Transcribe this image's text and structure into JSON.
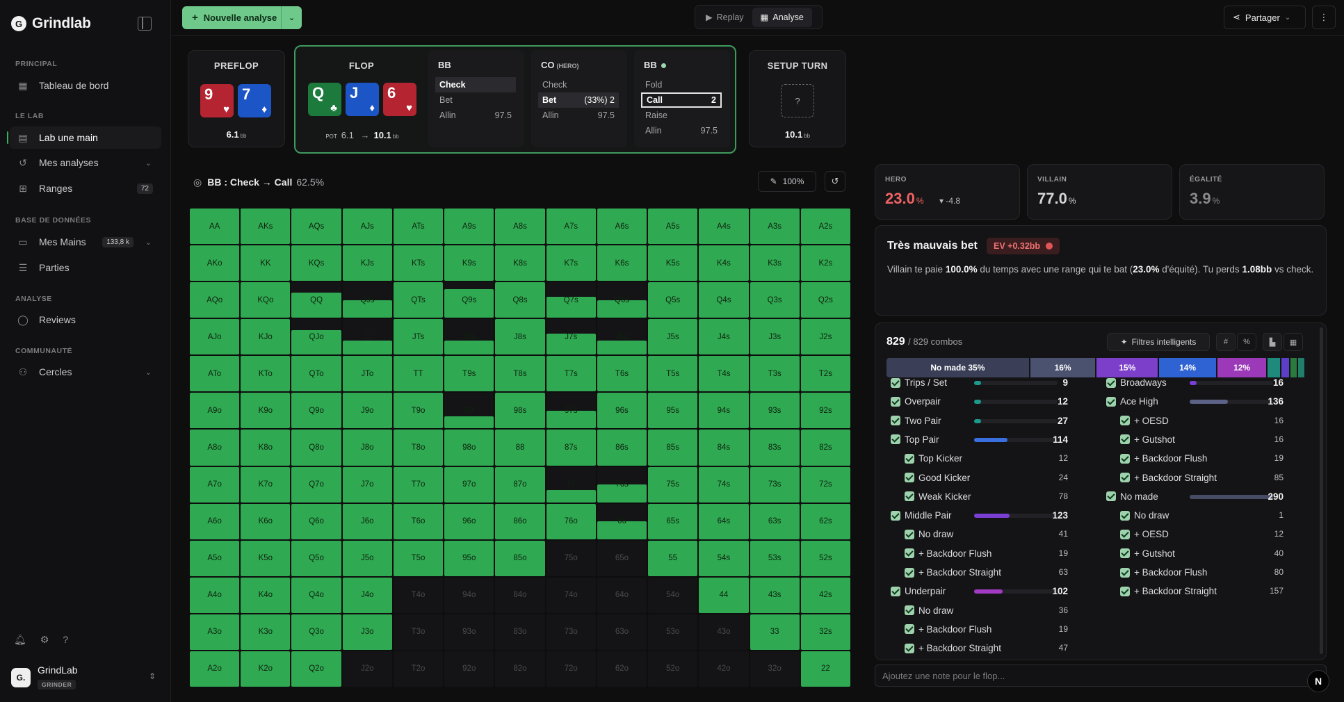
{
  "brand": {
    "name": "Grindlab"
  },
  "sidebar": {
    "sections": [
      "PRINCIPAL",
      "LE LAB",
      "BASE DE DONNÉES",
      "ANALYSE",
      "COMMUNAUTÉ"
    ],
    "items": [
      {
        "label": "Tableau de bord",
        "icon": "dashboard-icon"
      },
      {
        "label": "Lab une main",
        "icon": "calculator-icon"
      },
      {
        "label": "Mes analyses",
        "icon": "history-icon"
      },
      {
        "label": "Ranges",
        "icon": "grid-icon",
        "badge": "72"
      },
      {
        "label": "Mes Mains",
        "icon": "hands-icon",
        "badge": "133,8 k"
      },
      {
        "label": "Parties",
        "icon": "table-icon"
      },
      {
        "label": "Reviews",
        "icon": "chat-icon"
      },
      {
        "label": "Cercles",
        "icon": "users-icon"
      }
    ],
    "user": {
      "name": "GrindLab",
      "tag": "GRINDER",
      "avatar": "G."
    }
  },
  "topbar": {
    "new_label": "Nouvelle analyse",
    "replay": "Replay",
    "analyse": "Analyse",
    "share": "Partager"
  },
  "preflop": {
    "title": "PREFLOP",
    "cards": [
      {
        "rank": "9",
        "suit": "♥"
      },
      {
        "rank": "7",
        "suit": "♦"
      }
    ],
    "pot": "6.1",
    "unit": "bb"
  },
  "flop": {
    "title": "FLOP",
    "cards": [
      {
        "rank": "Q",
        "suit": "♣"
      },
      {
        "rank": "J",
        "suit": "♦"
      },
      {
        "rank": "6",
        "suit": "♥"
      }
    ],
    "pot_label": "POT",
    "pot_from": "6.1",
    "arrow": "→",
    "pot_to": "10.1",
    "unit": "bb"
  },
  "actions": [
    {
      "player": "BB",
      "tag": "",
      "rows": [
        {
          "a": "Check",
          "v": ""
        },
        {
          "a": "Bet",
          "v": ""
        },
        {
          "a": "Allin",
          "v": "97.5"
        }
      ]
    },
    {
      "player": "CO",
      "tag": "(HERO)",
      "rows": [
        {
          "a": "Check",
          "v": ""
        },
        {
          "a": "Bet",
          "v": "(33%) 2"
        },
        {
          "a": "Allin",
          "v": "97.5"
        }
      ]
    },
    {
      "player": "BB",
      "tag": "",
      "rows": [
        {
          "a": "Fold",
          "v": ""
        },
        {
          "a": "Call",
          "v": "2"
        },
        {
          "a": "Raise",
          "v": ""
        },
        {
          "a": "Allin",
          "v": "97.5"
        }
      ]
    }
  ],
  "setup_turn": {
    "title": "SETUP TURN",
    "placeholder": "?",
    "pot": "10.1",
    "unit": "bb"
  },
  "range_header": {
    "title": "BB : Check → Call",
    "pct": "62.5%",
    "zoom": "100%"
  },
  "hands": [
    [
      "AA",
      "AKs",
      "AQs",
      "AJs",
      "ATs",
      "A9s",
      "A8s",
      "A7s",
      "A6s",
      "A5s",
      "A4s",
      "A3s",
      "A2s"
    ],
    [
      "AKo",
      "KK",
      "KQs",
      "KJs",
      "KTs",
      "K9s",
      "K8s",
      "K7s",
      "K6s",
      "K5s",
      "K4s",
      "K3s",
      "K2s"
    ],
    [
      "AQo",
      "KQo",
      "QQ",
      "QJs",
      "QTs",
      "Q9s",
      "Q8s",
      "Q7s",
      "Q6s",
      "Q5s",
      "Q4s",
      "Q3s",
      "Q2s"
    ],
    [
      "AJo",
      "KJo",
      "QJo",
      "JJ",
      "JTs",
      "J9s",
      "J8s",
      "J7s",
      "J6s",
      "J5s",
      "J4s",
      "J3s",
      "J2s"
    ],
    [
      "ATo",
      "KTo",
      "QTo",
      "JTo",
      "TT",
      "T9s",
      "T8s",
      "T7s",
      "T6s",
      "T5s",
      "T4s",
      "T3s",
      "T2s"
    ],
    [
      "A9o",
      "K9o",
      "Q9o",
      "J9o",
      "T9o",
      "99",
      "98s",
      "97s",
      "96s",
      "95s",
      "94s",
      "93s",
      "92s"
    ],
    [
      "A8o",
      "K8o",
      "Q8o",
      "J8o",
      "T8o",
      "98o",
      "88",
      "87s",
      "86s",
      "85s",
      "84s",
      "83s",
      "82s"
    ],
    [
      "A7o",
      "K7o",
      "Q7o",
      "J7o",
      "T7o",
      "97o",
      "87o",
      "77",
      "76s",
      "75s",
      "74s",
      "73s",
      "72s"
    ],
    [
      "A6o",
      "K6o",
      "Q6o",
      "J6o",
      "T6o",
      "96o",
      "86o",
      "76o",
      "66",
      "65s",
      "64s",
      "63s",
      "62s"
    ],
    [
      "A5o",
      "K5o",
      "Q5o",
      "J5o",
      "T5o",
      "95o",
      "85o",
      "75o",
      "65o",
      "55",
      "54s",
      "53s",
      "52s"
    ],
    [
      "A4o",
      "K4o",
      "Q4o",
      "J4o",
      "T4o",
      "94o",
      "84o",
      "74o",
      "64o",
      "54o",
      "44",
      "43s",
      "42s"
    ],
    [
      "A3o",
      "K3o",
      "Q3o",
      "J3o",
      "T3o",
      "93o",
      "83o",
      "73o",
      "63o",
      "53o",
      "43o",
      "33",
      "32s"
    ],
    [
      "A2o",
      "K2o",
      "Q2o",
      "J2o",
      "T2o",
      "92o",
      "82o",
      "72o",
      "62o",
      "52o",
      "42o",
      "32o",
      "22"
    ]
  ],
  "hand_freq": [
    [
      1,
      1,
      1,
      1,
      1,
      1,
      1,
      1,
      1,
      1,
      1,
      1,
      1
    ],
    [
      1,
      1,
      1,
      1,
      1,
      1,
      1,
      1,
      1,
      1,
      1,
      1,
      1
    ],
    [
      1,
      1,
      0.7,
      0.5,
      1,
      0.8,
      1,
      0.6,
      0.5,
      1,
      1,
      1,
      1
    ],
    [
      1,
      1,
      0.7,
      0.4,
      1,
      0.4,
      1,
      0.6,
      0.4,
      1,
      1,
      1,
      1
    ],
    [
      1,
      1,
      1,
      1,
      1,
      1,
      1,
      1,
      1,
      1,
      1,
      1,
      1
    ],
    [
      1,
      1,
      1,
      1,
      1,
      0.35,
      1,
      0.5,
      1,
      1,
      1,
      1,
      1
    ],
    [
      1,
      1,
      1,
      1,
      1,
      1,
      1,
      1,
      1,
      1,
      1,
      1,
      1
    ],
    [
      1,
      1,
      1,
      1,
      1,
      1,
      1,
      0.35,
      0.5,
      1,
      1,
      1,
      1
    ],
    [
      1,
      1,
      1,
      1,
      1,
      1,
      1,
      1,
      0.5,
      1,
      1,
      1,
      1
    ],
    [
      1,
      1,
      1,
      1,
      1,
      1,
      1,
      0,
      0,
      1,
      1,
      1,
      1
    ],
    [
      1,
      1,
      1,
      1,
      0,
      0,
      0,
      0,
      0,
      0,
      1,
      1,
      1
    ],
    [
      1,
      1,
      1,
      1,
      0,
      0,
      0,
      0,
      0,
      0,
      0,
      1,
      1
    ],
    [
      1,
      1,
      1,
      0,
      0,
      0,
      0,
      0,
      0,
      0,
      0,
      0,
      1
    ]
  ],
  "equity": [
    {
      "label": "HERO",
      "value": "23.0",
      "unit": "%",
      "delta": "▾ -4.8",
      "color": "#ef6363"
    },
    {
      "label": "VILLAIN",
      "value": "77.0",
      "unit": "%",
      "color": "#d6d6d8"
    },
    {
      "label": "ÉGALITÉ",
      "value": "3.9",
      "unit": "%",
      "color": "#8a8a8e"
    }
  ],
  "verdict": {
    "title": "Très mauvais bet",
    "ev": "EV +0.32bb",
    "t1": "Villain te paie ",
    "b1": "100.0%",
    "t2": " du temps avec une range qui te bat (",
    "b2": "23.0%",
    "t3": " d'équité). Tu perds ",
    "b3": "1.08bb",
    "t4": " vs check."
  },
  "combos": {
    "count": "829",
    "total": "/ 829 combos",
    "smart": "Filtres intelligents",
    "dist": [
      {
        "label": "No made 35%",
        "pct": 35,
        "color": "#3a3f57"
      },
      {
        "label": "16%",
        "pct": 16,
        "color": "#4b5270"
      },
      {
        "label": "15%",
        "pct": 15,
        "color": "#7b3fc9"
      },
      {
        "label": "14%",
        "pct": 14,
        "color": "#2f63d4"
      },
      {
        "label": "12%",
        "pct": 12,
        "color": "#9b39b8"
      },
      {
        "label": "",
        "pct": 3,
        "color": "#1d8a7c"
      },
      {
        "label": "",
        "pct": 2,
        "color": "#5c3fc9"
      },
      {
        "label": "",
        "pct": 1.5,
        "color": "#2b7a3d"
      },
      {
        "label": "",
        "pct": 1.5,
        "color": "#1f7f6a"
      }
    ],
    "left": [
      {
        "label": "Trips / Set",
        "n": "9",
        "bar": 0.03,
        "color": "#1b9a8c",
        "lvl": 0
      },
      {
        "label": "Overpair",
        "n": "12",
        "bar": 0.03,
        "color": "#1b9a8c",
        "lvl": 0
      },
      {
        "label": "Two Pair",
        "n": "27",
        "bar": 0.03,
        "color": "#1b9a8c",
        "lvl": 0
      },
      {
        "label": "Top Pair",
        "n": "114",
        "bar": 0.14,
        "color": "#3a6fe0",
        "lvl": 0
      },
      {
        "label": "Top Kicker",
        "n": "12",
        "lvl": 1
      },
      {
        "label": "Good Kicker",
        "n": "24",
        "lvl": 1
      },
      {
        "label": "Weak Kicker",
        "n": "78",
        "lvl": 1
      },
      {
        "label": "Middle Pair",
        "n": "123",
        "bar": 0.15,
        "color": "#7a3fd3",
        "lvl": 0
      },
      {
        "label": "No draw",
        "n": "41",
        "lvl": 1
      },
      {
        "label": "+ Backdoor Flush",
        "n": "19",
        "lvl": 1
      },
      {
        "label": "+ Backdoor Straight",
        "n": "63",
        "lvl": 1
      },
      {
        "label": "Underpair",
        "n": "102",
        "bar": 0.12,
        "color": "#a23bc3",
        "lvl": 0
      },
      {
        "label": "No draw",
        "n": "36",
        "lvl": 1
      },
      {
        "label": "+ Backdoor Flush",
        "n": "19",
        "lvl": 1
      },
      {
        "label": "+ Backdoor Straight",
        "n": "47",
        "lvl": 1
      }
    ],
    "right": [
      {
        "label": "Broadways",
        "n": "16",
        "bar": 0.03,
        "color": "#7a3fd3",
        "lvl": 0
      },
      {
        "label": "Ace High",
        "n": "136",
        "bar": 0.16,
        "color": "#5b6285",
        "lvl": 0
      },
      {
        "label": "+ OESD",
        "n": "16",
        "lvl": 1
      },
      {
        "label": "+ Gutshot",
        "n": "16",
        "lvl": 1
      },
      {
        "label": "+ Backdoor Flush",
        "n": "19",
        "lvl": 1
      },
      {
        "label": "+ Backdoor Straight",
        "n": "85",
        "lvl": 1
      },
      {
        "label": "No made",
        "n": "290",
        "bar": 0.35,
        "color": "#474c66",
        "lvl": 0
      },
      {
        "label": "No draw",
        "n": "1",
        "lvl": 1
      },
      {
        "label": "+ OESD",
        "n": "12",
        "lvl": 1
      },
      {
        "label": "+ Gutshot",
        "n": "40",
        "lvl": 1
      },
      {
        "label": "+ Backdoor Flush",
        "n": "80",
        "lvl": 1
      },
      {
        "label": "+ Backdoor Straight",
        "n": "157",
        "lvl": 1
      }
    ]
  },
  "note": {
    "placeholder": "Ajoutez une note pour le flop..."
  }
}
